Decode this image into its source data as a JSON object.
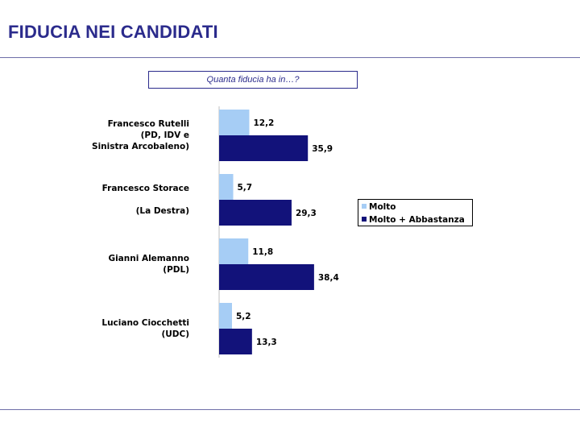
{
  "header": {
    "title": "FIDUCIA NEI CANDIDATI",
    "question": "Quanta fiducia ha in…?"
  },
  "colors": {
    "title": "#2b2b8c",
    "molto": "#a6cdf5",
    "molto_abbastanza": "#12127a"
  },
  "chart_data": {
    "type": "bar",
    "orientation": "horizontal",
    "categories": [
      [
        "Francesco Rutelli",
        "(PD, IDV e",
        "Sinistra Arcobaleno)"
      ],
      [
        "Francesco Storace",
        "",
        "(La Destra)"
      ],
      [
        "Gianni Alemanno",
        "(PDL)"
      ],
      [
        "Luciano Ciocchetti",
        "(UDC)"
      ]
    ],
    "series": [
      {
        "name": "Molto",
        "values": [
          12.2,
          5.7,
          11.8,
          5.2
        ],
        "labels": [
          "12,2",
          "5,7",
          "11,8",
          "5,2"
        ]
      },
      {
        "name": "Molto + Abbastanza",
        "values": [
          35.9,
          29.3,
          38.4,
          13.3
        ],
        "labels": [
          "35,9",
          "29,3",
          "38,4",
          "13,3"
        ]
      }
    ],
    "xlim": [
      0,
      100
    ],
    "grid": false,
    "legend_position": "right"
  }
}
